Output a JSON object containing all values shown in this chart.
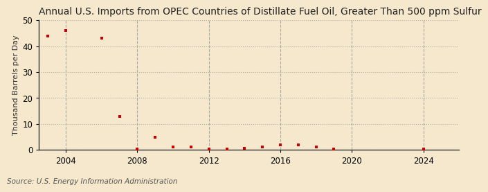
{
  "title": "Annual U.S. Imports from OPEC Countries of Distillate Fuel Oil, Greater Than 500 ppm Sulfur",
  "ylabel": "Thousand Barrels per Day",
  "source": "Source: U.S. Energy Information Administration",
  "background_color": "#f5e8cc",
  "marker_color": "#cc0000",
  "xlim": [
    2002.5,
    2026
  ],
  "ylim": [
    0,
    50
  ],
  "xticks": [
    2004,
    2008,
    2012,
    2016,
    2020,
    2024
  ],
  "yticks": [
    0,
    10,
    20,
    30,
    40,
    50
  ],
  "data_x": [
    2003,
    2004,
    2006,
    2007,
    2008,
    2009,
    2010,
    2011,
    2012,
    2013,
    2014,
    2015,
    2016,
    2017,
    2018,
    2019,
    2024
  ],
  "data_y": [
    44,
    46,
    43,
    13,
    0.3,
    5,
    1,
    1,
    0.3,
    0.3,
    0.5,
    1,
    2,
    2,
    1,
    0.3,
    0.3
  ],
  "title_fontsize": 10,
  "axis_fontsize": 8,
  "tick_fontsize": 8.5,
  "source_fontsize": 7.5
}
